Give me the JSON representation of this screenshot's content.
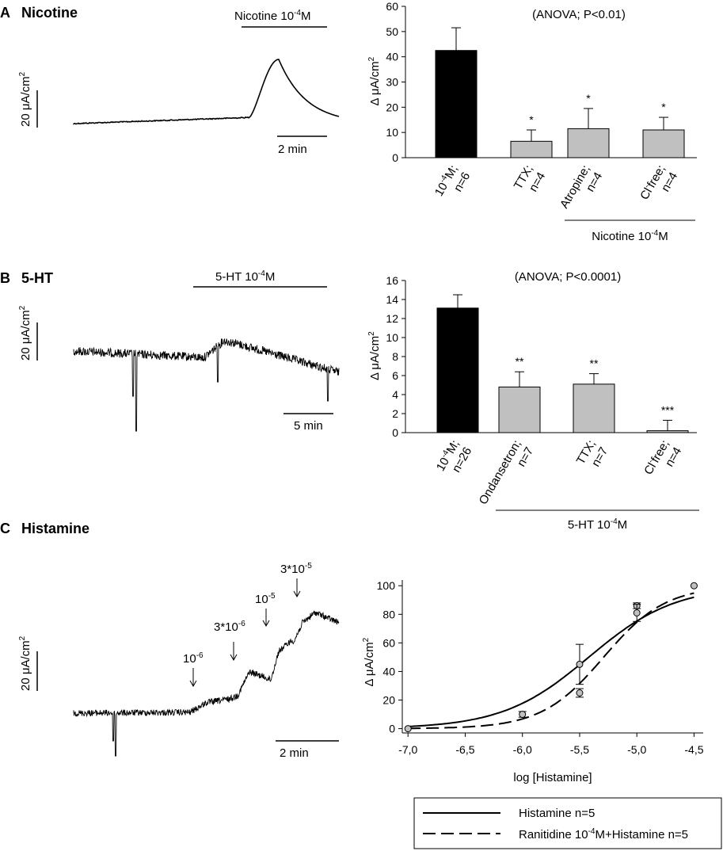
{
  "panels": {
    "a": {
      "letter": "A",
      "name": "Nicotine",
      "trace_bar_label": "Nicotine 10",
      "trace_bar_exp": "-4",
      "trace_bar_unit": "M",
      "scale_y_label": "20 μA/cm",
      "scale_y_exp": "2",
      "time_scale_label": "2 min"
    },
    "b": {
      "letter": "B",
      "name": "5-HT",
      "trace_bar_label": "5-HT 10",
      "trace_bar_exp": "-4",
      "trace_bar_unit": "M",
      "scale_y_label": "20 μA/cm",
      "scale_y_exp": "2",
      "time_scale_label": "5 min"
    },
    "c": {
      "letter": "C",
      "name": "Histamine",
      "scale_y_label": "20 μA/cm",
      "scale_y_exp": "2",
      "time_scale_label": "2 min",
      "arrows": [
        {
          "base": "10",
          "exp": "-6"
        },
        {
          "base": "3*10",
          "exp": "-6"
        },
        {
          "base": "10",
          "exp": "-5"
        },
        {
          "base": "3*10",
          "exp": "-5"
        }
      ]
    }
  },
  "chart_data": [
    {
      "id": "nicotine-bar",
      "type": "bar",
      "title": "(ANOVA; P<0.01)",
      "ylabel": "Δ μA/cm",
      "ylabel_exp": "2",
      "ylim": [
        0,
        60
      ],
      "yticks": [
        0,
        10,
        20,
        30,
        40,
        50,
        60
      ],
      "categories": [
        {
          "l1": "10",
          "l1_exp": "-4",
          "l1_end": "M;",
          "l2": "n=6"
        },
        {
          "l1": "TTX;",
          "l1_exp": "",
          "l1_end": "",
          "l2": "n=4"
        },
        {
          "l1": "Atropine;",
          "l1_exp": "",
          "l1_end": "",
          "l2": "n=4"
        },
        {
          "l1": "Cl",
          "l1_exp": "-",
          "l1_end": "free;",
          "l2": "n=4"
        }
      ],
      "values": [
        42.5,
        6.5,
        11.5,
        11
      ],
      "errors": [
        9,
        4.5,
        8,
        5
      ],
      "significance": [
        "",
        "*",
        "*",
        "*"
      ],
      "colors": [
        "#000000",
        "#c0c0c0",
        "#c0c0c0",
        "#c0c0c0"
      ],
      "group_label": "Nicotine 10",
      "group_label_exp": "-4",
      "group_label_end": "M",
      "group_from": 2,
      "group_to": 3
    },
    {
      "id": "serotonin-bar",
      "type": "bar",
      "title": "(ANOVA; P<0.0001)",
      "ylabel": "Δ μA/cm",
      "ylabel_exp": "2",
      "ylim": [
        0,
        16
      ],
      "yticks": [
        0,
        2,
        4,
        6,
        8,
        10,
        12,
        14,
        16
      ],
      "categories": [
        {
          "l1": "10",
          "l1_exp": "-4",
          "l1_end": "M;",
          "l2": "n=26"
        },
        {
          "l1": "Ondansetron;",
          "l1_exp": "",
          "l1_end": "",
          "l2": "n=7"
        },
        {
          "l1": "TTX;",
          "l1_exp": "",
          "l1_end": "",
          "l2": "n=7"
        },
        {
          "l1": "Cl",
          "l1_exp": "-",
          "l1_end": "free;",
          "l2": "n=4"
        }
      ],
      "values": [
        13.1,
        4.8,
        5.1,
        0.2
      ],
      "errors": [
        1.4,
        1.6,
        1.1,
        1.1
      ],
      "significance": [
        "",
        "**",
        "**",
        "***"
      ],
      "colors": [
        "#000000",
        "#c0c0c0",
        "#c0c0c0",
        "#c0c0c0"
      ],
      "group_label": "5-HT 10",
      "group_label_exp": "-4",
      "group_label_end": "M",
      "group_from": 1,
      "group_to": 3
    },
    {
      "id": "histamine-dose",
      "type": "line",
      "title": "",
      "xlabel": "log  [Histamine]",
      "ylabel": "Δ μA/cm",
      "ylabel_exp": "2",
      "xlim": [
        -7.05,
        -4.42
      ],
      "ylim": [
        -3,
        104
      ],
      "xticks": [
        -7.0,
        -6.5,
        -6.0,
        -5.5,
        -5.0,
        -4.5
      ],
      "xtick_labels": [
        "-7,0",
        "-6,5",
        "-6,0",
        "-5,5",
        "-5,0",
        "-4,5"
      ],
      "yticks": [
        0,
        20,
        40,
        60,
        80,
        100
      ],
      "series": [
        {
          "name": "Histamine n=5",
          "style": "solid",
          "ec50": -5.42,
          "hill": 1.15,
          "points": [
            {
              "x": -7.0,
              "y": 0,
              "err": 0
            },
            {
              "x": -6.0,
              "y": 10,
              "err": 2
            },
            {
              "x": -5.5,
              "y": 45,
              "err": 14
            },
            {
              "x": -5.0,
              "y": 86,
              "err": 2
            },
            {
              "x": -4.5,
              "y": 100,
              "err": 0
            }
          ]
        },
        {
          "name": "Ranitidine 10-4M+Histamine n=5",
          "legend_prefix": "Ranitidine 10",
          "legend_exp": "-4",
          "legend_suffix": "M+Histamine n=5",
          "style": "dashed",
          "ec50": -5.29,
          "hill": 1.6,
          "points": [
            {
              "x": -5.5,
              "y": 25,
              "err": 3
            },
            {
              "x": -5.0,
              "y": 81,
              "err": 6
            }
          ]
        }
      ],
      "legend": "bottom"
    }
  ]
}
